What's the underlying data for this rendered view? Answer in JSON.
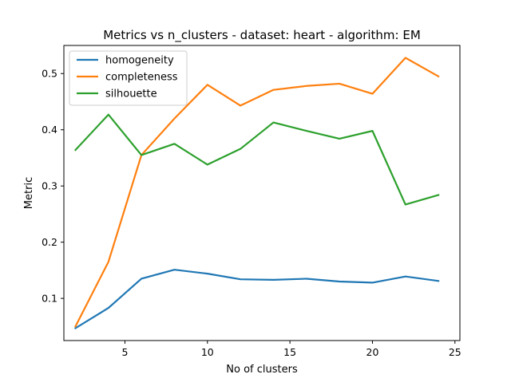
{
  "chart_data": {
    "type": "line",
    "title": "Metrics vs n_clusters - dataset: heart - algorithm: EM",
    "xlabel": "No of clusters",
    "ylabel": "Metric",
    "xlim": [
      1.3,
      25.3
    ],
    "ylim": [
      0.025,
      0.55
    ],
    "xticks": [
      5,
      10,
      15,
      20,
      25
    ],
    "xtick_labels": [
      "5",
      "10",
      "15",
      "20",
      "25"
    ],
    "yticks": [
      0.1,
      0.2,
      0.3,
      0.4,
      0.5
    ],
    "ytick_labels": [
      "0.1",
      "0.2",
      "0.3",
      "0.4",
      "0.5"
    ],
    "grid": false,
    "legend_position": "top-left",
    "x": [
      2,
      4,
      6,
      8,
      10,
      12,
      14,
      16,
      18,
      20,
      22,
      24
    ],
    "series": [
      {
        "name": "homogeneity",
        "color": "#1f77b4",
        "values": [
          0.047,
          0.083,
          0.135,
          0.151,
          0.144,
          0.134,
          0.133,
          0.135,
          0.13,
          0.128,
          0.139,
          0.131
        ]
      },
      {
        "name": "completeness",
        "color": "#ff7f0e",
        "values": [
          0.05,
          0.165,
          0.355,
          0.42,
          0.48,
          0.443,
          0.471,
          0.478,
          0.482,
          0.464,
          0.528,
          0.495
        ]
      },
      {
        "name": "silhouette",
        "color": "#2ca02c",
        "values": [
          0.364,
          0.427,
          0.355,
          0.375,
          0.338,
          0.366,
          0.413,
          0.398,
          0.384,
          0.398,
          0.267,
          0.284
        ]
      }
    ]
  }
}
